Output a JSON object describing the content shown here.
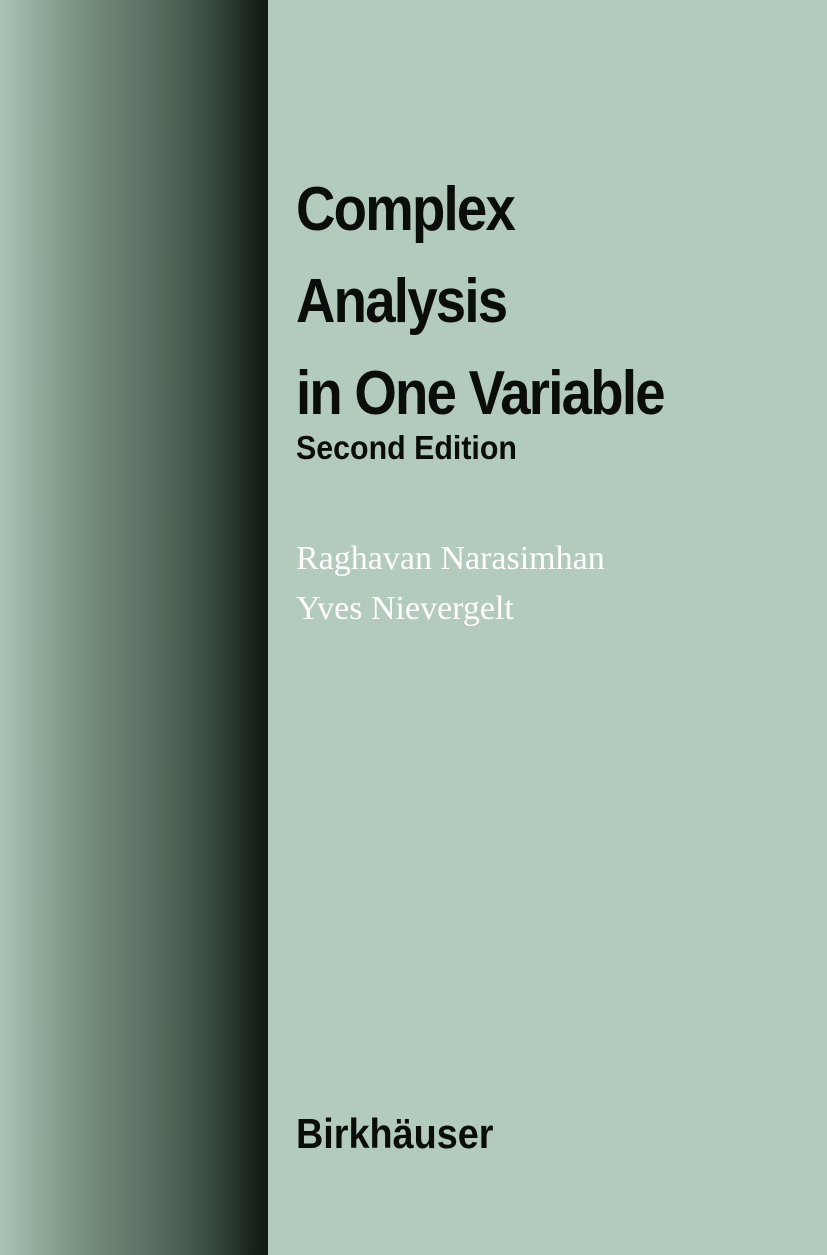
{
  "cover": {
    "title_lines": [
      "Complex",
      "Analysis",
      "in One Variable"
    ],
    "edition": "Second Edition",
    "authors": [
      "Raghavan Narasimhan",
      "Yves Nievergelt"
    ],
    "publisher": "Birkhäuser"
  },
  "colors": {
    "background": "#b3cbbc",
    "band_dark": "#111a14",
    "title_text": "#0b0d0b",
    "author_text": "#ffffff"
  }
}
